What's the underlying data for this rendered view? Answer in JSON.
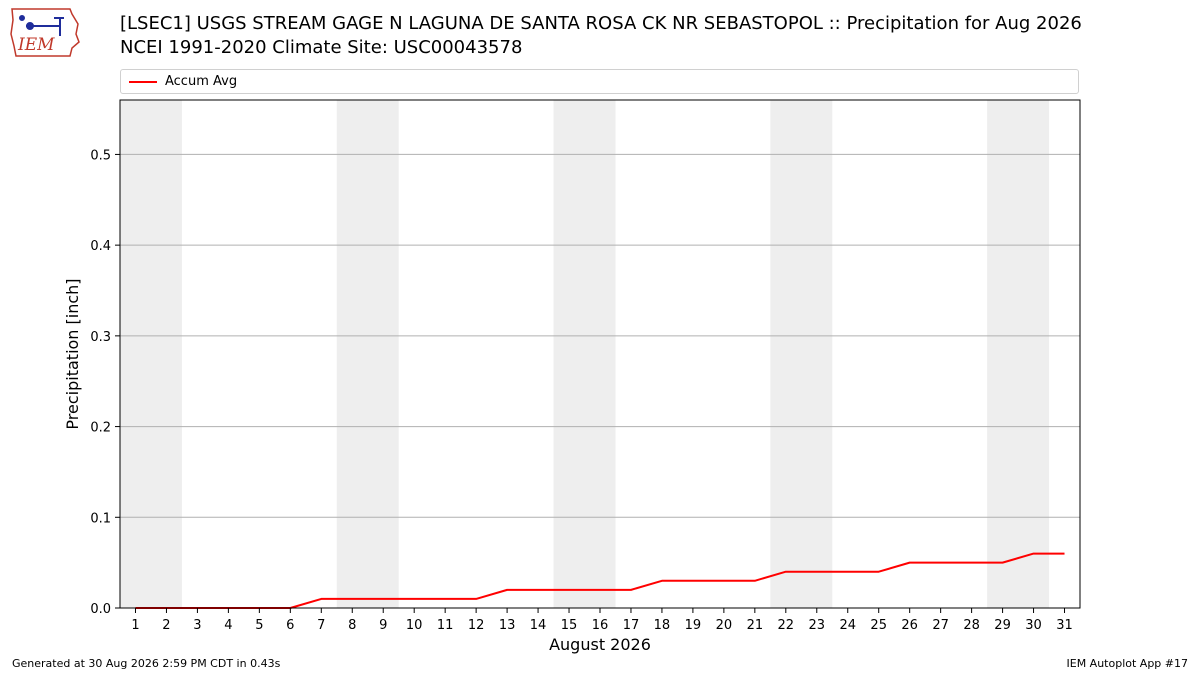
{
  "header": {
    "logo_text": "IEM",
    "title_line1": "[LSEC1] USGS STREAM GAGE  N LAGUNA DE SANTA ROSA CK NR SEBASTOPOL :: Precipitation for Aug 2026",
    "title_line2": "NCEI 1991-2020 Climate Site: USC00043578"
  },
  "footer": {
    "generated": "Generated at 30 Aug 2026 2:59 PM CDT in 0.43s",
    "app": "IEM Autoplot App #17"
  },
  "colors": {
    "series": "#ff0000",
    "weekend_band": "#eeeeee",
    "grid": "#b0b0b0"
  },
  "chart_data": {
    "type": "line",
    "title": "[LSEC1] USGS STREAM GAGE  N LAGUNA DE SANTA ROSA CK NR SEBASTOPOL :: Precipitation for Aug 2026",
    "subtitle": "NCEI 1991-2020 Climate Site: USC00043578",
    "xlabel": "August 2026",
    "ylabel": "Precipitation [inch]",
    "xlim": [
      0.5,
      31.5
    ],
    "ylim": [
      0,
      0.56
    ],
    "yticks": [
      0.0,
      0.1,
      0.2,
      0.3,
      0.4,
      0.5
    ],
    "ytick_labels": [
      "0.0",
      "0.1",
      "0.2",
      "0.3",
      "0.4",
      "0.5"
    ],
    "grid": "horizontal",
    "legend_position": "top",
    "weekend_bands": [
      [
        0.5,
        2.5
      ],
      [
        7.5,
        9.5
      ],
      [
        14.5,
        16.5
      ],
      [
        21.5,
        23.5
      ],
      [
        28.5,
        30.5
      ]
    ],
    "x": [
      1,
      2,
      3,
      4,
      5,
      6,
      7,
      8,
      9,
      10,
      11,
      12,
      13,
      14,
      15,
      16,
      17,
      18,
      19,
      20,
      21,
      22,
      23,
      24,
      25,
      26,
      27,
      28,
      29,
      30,
      31
    ],
    "xtick_labels": [
      "1",
      "2",
      "3",
      "4",
      "5",
      "6",
      "7",
      "8",
      "9",
      "10",
      "11",
      "12",
      "13",
      "14",
      "15",
      "16",
      "17",
      "18",
      "19",
      "20",
      "21",
      "22",
      "23",
      "24",
      "25",
      "26",
      "27",
      "28",
      "29",
      "30",
      "31"
    ],
    "series": [
      {
        "name": "Accum Avg",
        "color": "#ff0000",
        "values": [
          0.0,
          0.0,
          0.0,
          0.0,
          0.0,
          0.0,
          0.01,
          0.01,
          0.01,
          0.01,
          0.01,
          0.01,
          0.02,
          0.02,
          0.02,
          0.02,
          0.02,
          0.03,
          0.03,
          0.03,
          0.03,
          0.04,
          0.04,
          0.04,
          0.04,
          0.05,
          0.05,
          0.05,
          0.05,
          0.06,
          0.06
        ]
      }
    ]
  }
}
